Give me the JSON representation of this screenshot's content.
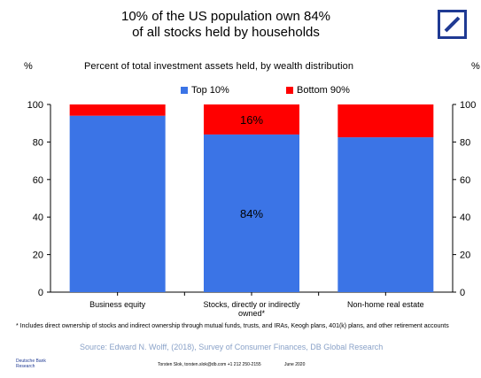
{
  "header": {
    "title_line1": "10% of the US population own 84%",
    "title_line2": "of all stocks held by households",
    "logo_icon": "deutsche-bank-slash-logo",
    "logo_color": "#1f3a93"
  },
  "axis_unit_left": "%",
  "axis_unit_right": "%",
  "chart_data": {
    "type": "bar",
    "stacked": true,
    "title": "Percent of total investment assets held, by wealth distribution",
    "categories": [
      "Business equity",
      "Stocks, directly or indirectly owned*",
      "Non-home real estate"
    ],
    "series": [
      {
        "name": "Top 10%",
        "color": "#3b74e6",
        "values": [
          94,
          84,
          82.5
        ]
      },
      {
        "name": "Bottom 90%",
        "color": "#ff0000",
        "values": [
          6,
          16,
          17.5
        ]
      }
    ],
    "data_labels": [
      {
        "category_index": 1,
        "series_index": 1,
        "text": "16%"
      },
      {
        "category_index": 1,
        "series_index": 0,
        "text": "84%"
      }
    ],
    "ylim": [
      0,
      100
    ],
    "yticks": [
      0,
      20,
      40,
      60,
      80,
      100
    ],
    "secondary_yaxis": true,
    "grid": false,
    "legend_position": "top-center"
  },
  "footnote": "* Includes direct ownership of stocks and indirect ownership through mutual funds, trusts, and IRAs, Keogh plans, 401(k) plans, and other retirement accounts",
  "source": "Source: Edward N. Wolff, (2018), Survey of Consumer Finances, DB Global Research",
  "footer": {
    "org_line1": "Deutsche Bank",
    "org_line2": "Research",
    "contact": "Torsten Slok, torsten.slok@db.com  +1 212 250-2155",
    "date": "June 2020"
  }
}
